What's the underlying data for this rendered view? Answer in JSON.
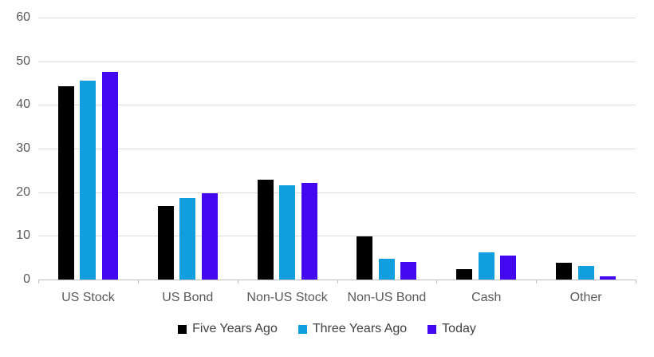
{
  "chart_data": {
    "type": "bar",
    "grouping": "grouped",
    "title": "",
    "xlabel": "",
    "ylabel": "",
    "categories": [
      "US Stock",
      "US Bond",
      "Non-US Stock",
      "Non-US Bond",
      "Cash",
      "Other"
    ],
    "series": [
      {
        "name": "Five Years Ago",
        "color": "#000000",
        "values": [
          44.3,
          16.9,
          22.8,
          9.9,
          2.3,
          3.9
        ]
      },
      {
        "name": "Three Years Ago",
        "color": "#119EDF",
        "values": [
          45.5,
          18.6,
          21.5,
          4.7,
          6.3,
          3.2
        ]
      },
      {
        "name": "Today",
        "color": "#4408F0",
        "values": [
          47.6,
          19.8,
          22.1,
          4.1,
          5.4,
          0.8
        ]
      }
    ],
    "ylim": [
      0,
      60
    ],
    "yticks": [
      0,
      10,
      20,
      30,
      40,
      50,
      60
    ],
    "ytick_labels": [
      "0",
      "10",
      "20",
      "30",
      "40",
      "50",
      "60"
    ],
    "grid": true,
    "gridline_color": "#dcdcdc",
    "axis_line_color": "#bfbfbf",
    "axis_text_color": "#595959",
    "legend_position": "bottom"
  }
}
